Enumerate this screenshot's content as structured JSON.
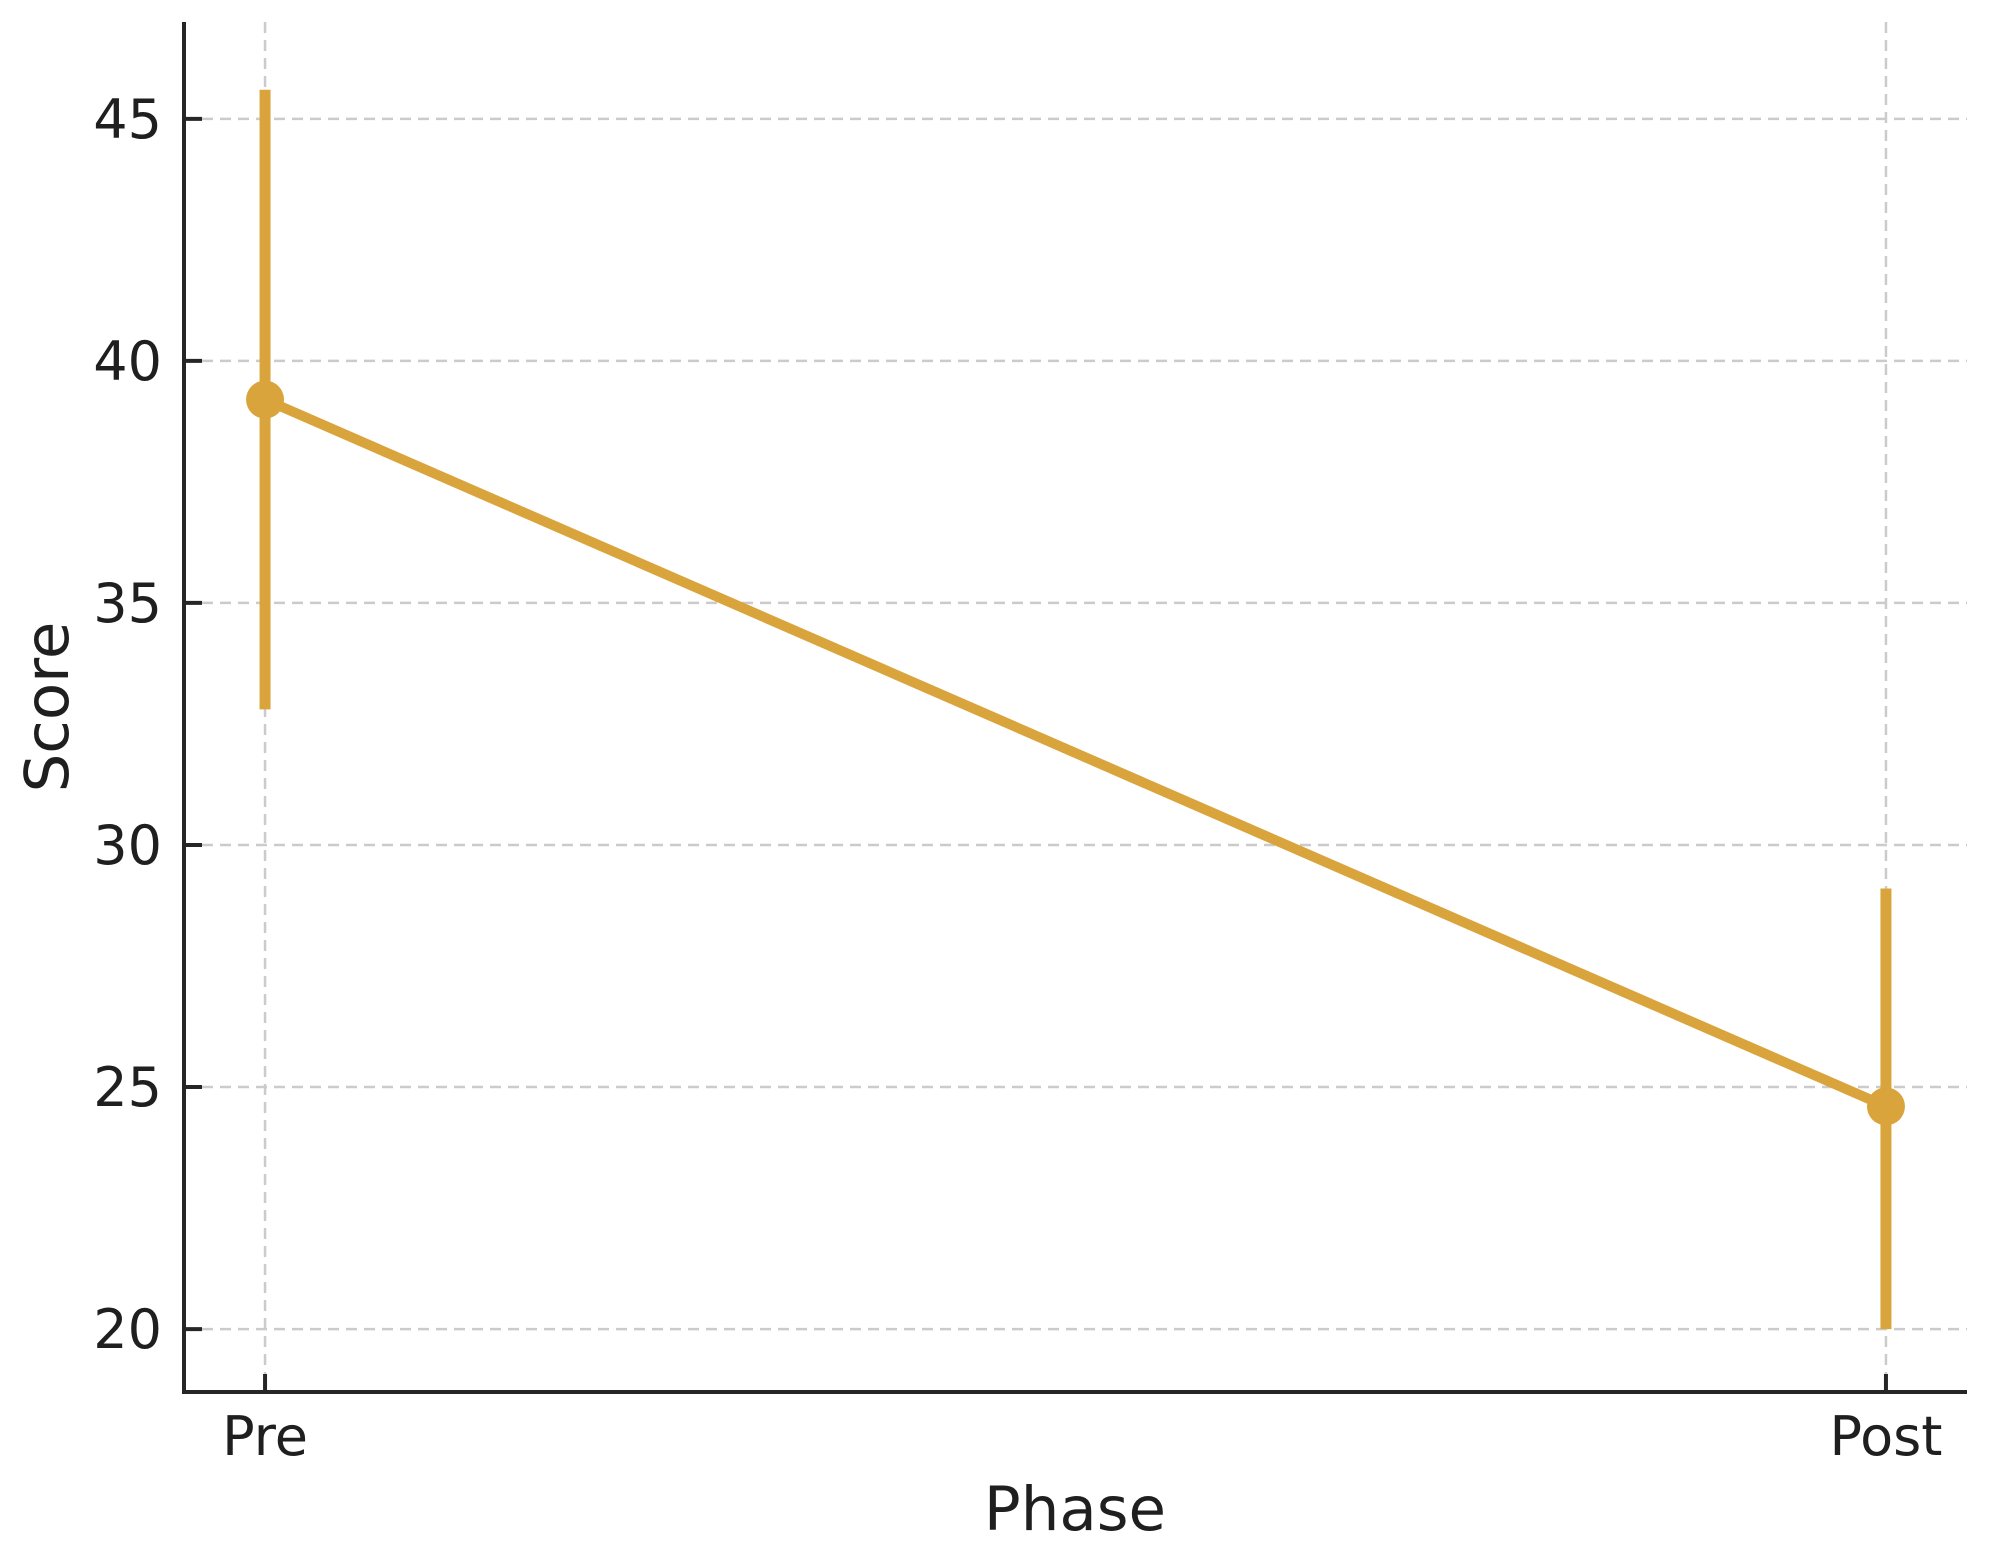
{
  "figure": {
    "background": "#ffffff"
  },
  "chart_data": {
    "type": "line",
    "title": "",
    "xlabel": "Phase",
    "ylabel": "Score",
    "categories": [
      "Pre",
      "Post"
    ],
    "series": [
      {
        "name": "Score",
        "color": "#d9a43c",
        "values": [
          39.2,
          24.6
        ],
        "ci_low": [
          32.8,
          20.0
        ],
        "ci_high": [
          45.6,
          29.1
        ]
      }
    ],
    "yticks": [
      20,
      25,
      30,
      35,
      40,
      45
    ],
    "ylim": [
      18.7,
      47.0
    ],
    "x_axis_padding": 0.05,
    "grid": {
      "visible": true,
      "style": "dashed",
      "color": "#cbcbcb",
      "horizontal": true,
      "vertical": true
    },
    "legend": "none",
    "marker": "circle",
    "error_bars": true
  },
  "axis_style": {
    "spine_color": "#262626",
    "tick_color": "#262626",
    "label_color": "#1f1f1f"
  }
}
